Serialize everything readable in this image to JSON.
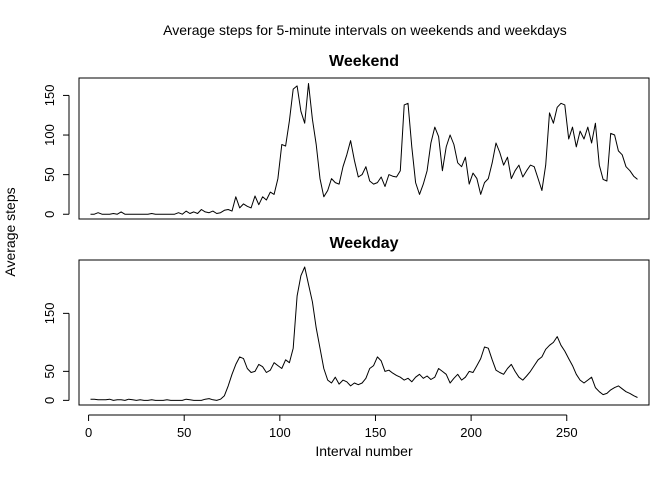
{
  "chart_data": {
    "type": "line",
    "title": "Average steps for 5-minute intervals on weekends and weekdays",
    "xlabel": "Interval number",
    "ylabel": "Average steps",
    "xlim": [
      -5,
      293
    ],
    "x_ticks": [
      0,
      50,
      100,
      150,
      200,
      250
    ],
    "grid": false,
    "legend": "none",
    "line_color": "#000000",
    "panels": [
      {
        "title": "Weekend",
        "ylim": [
          -6,
          172
        ],
        "y_ticks": [
          0,
          50,
          100,
          150
        ],
        "series": [
          {
            "x": [
              1,
              3,
              5,
              7,
              9,
              11,
              13,
              15,
              17,
              19,
              21,
              23,
              25,
              27,
              29,
              31,
              33,
              35,
              37,
              39,
              41,
              43,
              45,
              47,
              49,
              51,
              53,
              55,
              57,
              59,
              61,
              63,
              65,
              67,
              69,
              71,
              73,
              75,
              77,
              79,
              81,
              83,
              85,
              87,
              89,
              91,
              93,
              95,
              97,
              99,
              101,
              103,
              105,
              107,
              109,
              111,
              113,
              115,
              117,
              119,
              121,
              123,
              125,
              127,
              129,
              131,
              133,
              135,
              137,
              139,
              141,
              143,
              145,
              147,
              149,
              151,
              153,
              155,
              157,
              159,
              161,
              163,
              165,
              167,
              169,
              171,
              173,
              175,
              177,
              179,
              181,
              183,
              185,
              187,
              189,
              191,
              193,
              195,
              197,
              199,
              201,
              203,
              205,
              207,
              209,
              211,
              213,
              215,
              217,
              219,
              221,
              223,
              225,
              227,
              229,
              231,
              233,
              235,
              237,
              239,
              241,
              243,
              245,
              247,
              249,
              251,
              253,
              255,
              257,
              259,
              261,
              263,
              265,
              267,
              269,
              271,
              273,
              275,
              277,
              279,
              281,
              283,
              285,
              287
            ],
            "y": [
              0,
              0,
              2,
              0,
              0,
              0,
              1,
              0,
              3,
              0,
              0,
              0,
              0,
              0,
              0,
              0,
              1,
              0,
              0,
              0,
              0,
              0,
              0,
              2,
              0,
              4,
              1,
              3,
              1,
              6,
              3,
              2,
              4,
              1,
              2,
              5,
              6,
              4,
              22,
              8,
              13,
              10,
              8,
              23,
              12,
              22,
              18,
              28,
              25,
              45,
              88,
              86,
              118,
              158,
              162,
              130,
              115,
              165,
              120,
              88,
              45,
              22,
              30,
              45,
              40,
              38,
              60,
              75,
              93,
              68,
              47,
              50,
              60,
              42,
              38,
              40,
              47,
              35,
              50,
              48,
              47,
              55,
              138,
              140,
              85,
              40,
              25,
              38,
              55,
              90,
              110,
              98,
              55,
              85,
              100,
              88,
              65,
              60,
              72,
              38,
              52,
              45,
              25,
              40,
              45,
              65,
              90,
              78,
              62,
              72,
              45,
              55,
              62,
              47,
              55,
              62,
              60,
              45,
              30,
              62,
              128,
              115,
              135,
              140,
              138,
              95,
              110,
              85,
              105,
              95,
              110,
              90,
              115,
              62,
              44,
              42,
              102,
              100,
              80,
              75,
              60,
              55,
              48,
              44
            ]
          }
        ]
      },
      {
        "title": "Weekday",
        "ylim": [
          -8,
          242
        ],
        "y_ticks": [
          0,
          50,
          150
        ],
        "series": [
          {
            "x": [
              1,
              3,
              5,
              7,
              9,
              11,
              13,
              15,
              17,
              19,
              21,
              23,
              25,
              27,
              29,
              31,
              33,
              35,
              37,
              39,
              41,
              43,
              45,
              47,
              49,
              51,
              53,
              55,
              57,
              59,
              61,
              63,
              65,
              67,
              69,
              71,
              73,
              75,
              77,
              79,
              81,
              83,
              85,
              87,
              89,
              91,
              93,
              95,
              97,
              99,
              101,
              103,
              105,
              107,
              109,
              111,
              113,
              115,
              117,
              119,
              121,
              123,
              125,
              127,
              129,
              131,
              133,
              135,
              137,
              139,
              141,
              143,
              145,
              147,
              149,
              151,
              153,
              155,
              157,
              159,
              161,
              163,
              165,
              167,
              169,
              171,
              173,
              175,
              177,
              179,
              181,
              183,
              185,
              187,
              189,
              191,
              193,
              195,
              197,
              199,
              201,
              203,
              205,
              207,
              209,
              211,
              213,
              215,
              217,
              219,
              221,
              223,
              225,
              227,
              229,
              231,
              233,
              235,
              237,
              239,
              241,
              243,
              245,
              247,
              249,
              251,
              253,
              255,
              257,
              259,
              261,
              263,
              265,
              267,
              269,
              271,
              273,
              275,
              277,
              279,
              281,
              283,
              285,
              287
            ],
            "y": [
              2,
              2,
              1,
              1,
              1,
              2,
              0,
              1,
              1,
              0,
              2,
              1,
              0,
              1,
              0,
              0,
              1,
              0,
              0,
              0,
              1,
              0,
              0,
              0,
              0,
              2,
              1,
              0,
              0,
              0,
              2,
              3,
              1,
              0,
              2,
              8,
              25,
              45,
              62,
              75,
              72,
              55,
              48,
              50,
              62,
              58,
              48,
              52,
              65,
              60,
              55,
              70,
              65,
              90,
              180,
              215,
              230,
              200,
              170,
              125,
              90,
              55,
              35,
              30,
              40,
              28,
              35,
              32,
              25,
              30,
              27,
              30,
              38,
              55,
              60,
              75,
              68,
              50,
              52,
              47,
              43,
              40,
              35,
              38,
              32,
              40,
              45,
              38,
              42,
              36,
              40,
              55,
              50,
              45,
              30,
              38,
              45,
              35,
              40,
              50,
              48,
              60,
              72,
              92,
              90,
              70,
              52,
              48,
              45,
              55,
              62,
              50,
              40,
              35,
              42,
              50,
              60,
              70,
              75,
              88,
              95,
              100,
              110,
              95,
              85,
              72,
              60,
              45,
              35,
              30,
              35,
              40,
              22,
              15,
              10,
              12,
              18,
              22,
              25,
              20,
              15,
              12,
              8,
              5
            ]
          }
        ]
      }
    ]
  }
}
